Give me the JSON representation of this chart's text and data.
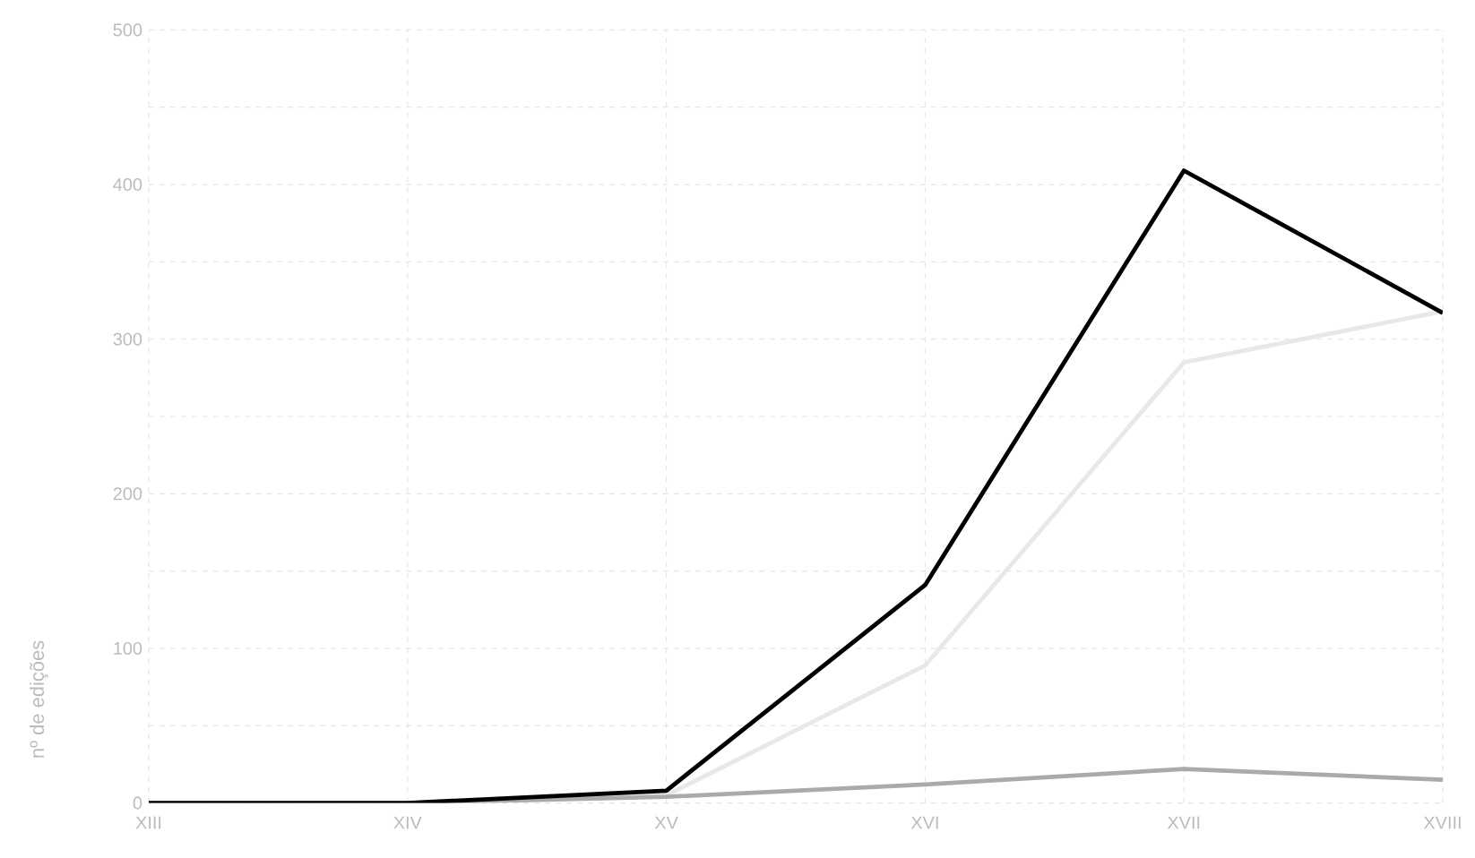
{
  "chart_data": {
    "type": "line",
    "ylabel": "nº de edições",
    "categories": [
      "XIII",
      "XIV",
      "XV",
      "XVI",
      "XVII",
      "XVIII"
    ],
    "series": [
      {
        "color": "#e8e8e8",
        "values": [
          0,
          0,
          5,
          89,
          285,
          318
        ]
      },
      {
        "color": "#aaaaaa",
        "values": [
          0,
          0,
          4,
          12,
          22,
          15
        ]
      },
      {
        "color": "#000000",
        "values": [
          0,
          0,
          8,
          141,
          409,
          317
        ]
      }
    ],
    "ylim": [
      0,
      500
    ],
    "yticks": [
      0,
      {
        "value": 50,
        "label": null
      },
      100,
      {
        "value": 150,
        "label": null
      },
      200,
      {
        "value": 250,
        "label": null
      },
      300,
      {
        "value": 350,
        "label": null
      },
      400,
      {
        "value": 450,
        "label": null
      },
      500
    ],
    "grid": true,
    "marker": "none",
    "line_style": "solid"
  }
}
